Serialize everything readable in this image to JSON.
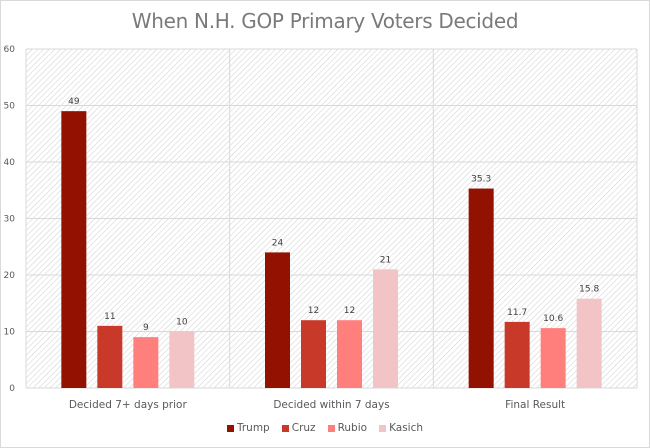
{
  "chart_data": {
    "type": "bar",
    "title": "When N.H. GOP Primary Voters Decided",
    "xlabel": "",
    "ylabel": "",
    "ylim": [
      0,
      60
    ],
    "yticks": [
      0,
      10,
      20,
      30,
      40,
      50,
      60
    ],
    "grid": true,
    "legend_position": "bottom",
    "categories": [
      "Decided 7+ days prior",
      "Decided within 7 days",
      "Final Result"
    ],
    "series": [
      {
        "name": "Trump",
        "color": "#931100",
        "values": [
          49,
          24,
          35.3
        ],
        "labels": [
          "49",
          "24",
          "35.3"
        ]
      },
      {
        "name": "Cruz",
        "color": "#C9392A",
        "values": [
          11,
          12,
          11.7
        ],
        "labels": [
          "11",
          "12",
          "11.7"
        ]
      },
      {
        "name": "Rubio",
        "color": "#FF7F7C",
        "values": [
          9,
          12,
          10.6
        ],
        "labels": [
          "9",
          "12",
          "10.6"
        ]
      },
      {
        "name": "Kasich",
        "color": "#F2C4C6",
        "values": [
          10,
          21,
          15.8
        ],
        "labels": [
          "10",
          "21",
          "15.8"
        ]
      }
    ]
  }
}
